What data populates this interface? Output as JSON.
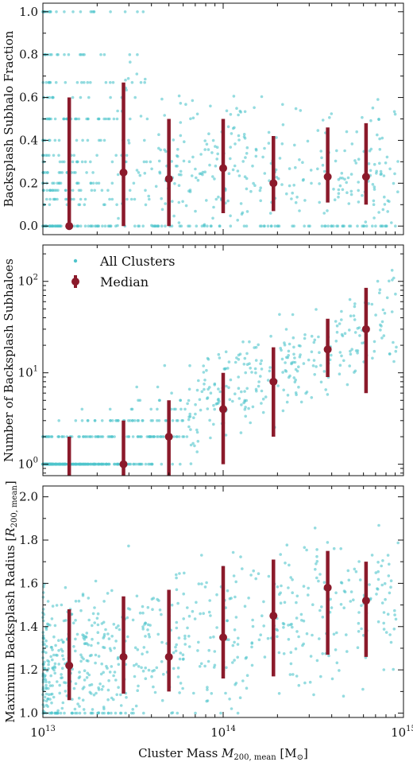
{
  "colors": {
    "scatter": "#4fc4cc",
    "median": "#8b1a2b",
    "axis": "#111111"
  },
  "xaxis": {
    "label_prefix": "Cluster Mass ",
    "label_symbol": "M",
    "label_sub": "200, mean",
    "label_unit": " [M",
    "label_unit_sub": "⊙",
    "label_unit_end": "]",
    "scale": "log",
    "xlim": [
      10000000000000.0,
      1000000000000000.0
    ],
    "tick_labels": [
      {
        "base": "10",
        "exp": "13",
        "value": 10000000000000.0
      },
      {
        "base": "10",
        "exp": "14",
        "value": 100000000000000.0
      },
      {
        "base": "10",
        "exp": "15",
        "value": 1000000000000000.0
      }
    ]
  },
  "legend": {
    "placement": "upper-left of middle panel",
    "scatter_label": "All Clusters",
    "median_label": "Median"
  },
  "chart_data": [
    {
      "type": "scatter",
      "ylabel": "Backsplash Subhalo Fraction",
      "yscale": "linear",
      "ylim": [
        -0.04,
        1.04
      ],
      "yticks": [
        0.0,
        0.2,
        0.4,
        0.6,
        0.8,
        1.0
      ],
      "ytick_labels": [
        "0.0",
        "0.2",
        "0.4",
        "0.6",
        "0.8",
        "1.0"
      ],
      "median": [
        {
          "x": 14000000000000.0,
          "y": 0.0,
          "lo": 0.0,
          "hi": 0.6
        },
        {
          "x": 28000000000000.0,
          "y": 0.25,
          "lo": 0.0,
          "hi": 0.67
        },
        {
          "x": 50000000000000.0,
          "y": 0.22,
          "lo": 0.0,
          "hi": 0.5
        },
        {
          "x": 100000000000000.0,
          "y": 0.27,
          "lo": 0.06,
          "hi": 0.5
        },
        {
          "x": 190000000000000.0,
          "y": 0.2,
          "lo": 0.07,
          "hi": 0.42
        },
        {
          "x": 380000000000000.0,
          "y": 0.23,
          "lo": 0.11,
          "hi": 0.46
        },
        {
          "x": 620000000000000.0,
          "y": 0.23,
          "lo": 0.1,
          "hi": 0.48
        }
      ],
      "scatter_summary": "Discrete horizontal bands at 0, 0.25, 0.33, 0.5, 0.67, 1.0 at low mass; broad spread 0–0.9 at high mass"
    },
    {
      "type": "scatter",
      "ylabel": "Number of Backsplash Subhaloes",
      "yscale": "log",
      "ylim": [
        0.75,
        250
      ],
      "ytick_labels": [
        {
          "base": "10",
          "exp": "0",
          "value": 1
        },
        {
          "base": "10",
          "exp": "1",
          "value": 10
        },
        {
          "base": "10",
          "exp": "2",
          "value": 100
        }
      ],
      "median": [
        {
          "x": 14000000000000.0,
          "y": 0.5,
          "lo": 0.5,
          "hi": 2
        },
        {
          "x": 28000000000000.0,
          "y": 1,
          "lo": 0.5,
          "hi": 3
        },
        {
          "x": 50000000000000.0,
          "y": 2,
          "lo": 0.5,
          "hi": 5
        },
        {
          "x": 100000000000000.0,
          "y": 4,
          "lo": 1,
          "hi": 10
        },
        {
          "x": 190000000000000.0,
          "y": 8,
          "lo": 2,
          "hi": 19
        },
        {
          "x": 380000000000000.0,
          "y": 18,
          "lo": 9,
          "hi": 39
        },
        {
          "x": 620000000000000.0,
          "y": 30,
          "lo": 6,
          "hi": 85
        }
      ]
    },
    {
      "type": "scatter",
      "ylabel_prefix": "Maximum Backsplash Radius [",
      "ylabel_symbol": "R",
      "ylabel_sub": "200, mean",
      "ylabel_end": "]",
      "yscale": "linear",
      "ylim": [
        0.98,
        2.05
      ],
      "yticks": [
        1.0,
        1.2,
        1.4,
        1.6,
        1.8,
        2.0
      ],
      "ytick_labels": [
        "1.0",
        "1.2",
        "1.4",
        "1.6",
        "1.8",
        "2.0"
      ],
      "median": [
        {
          "x": 14000000000000.0,
          "y": 1.22,
          "lo": 1.06,
          "hi": 1.48
        },
        {
          "x": 28000000000000.0,
          "y": 1.26,
          "lo": 1.09,
          "hi": 1.54
        },
        {
          "x": 50000000000000.0,
          "y": 1.26,
          "lo": 1.1,
          "hi": 1.57
        },
        {
          "x": 100000000000000.0,
          "y": 1.35,
          "lo": 1.16,
          "hi": 1.68
        },
        {
          "x": 190000000000000.0,
          "y": 1.45,
          "lo": 1.17,
          "hi": 1.71
        },
        {
          "x": 380000000000000.0,
          "y": 1.58,
          "lo": 1.27,
          "hi": 1.75
        },
        {
          "x": 620000000000000.0,
          "y": 1.52,
          "lo": 1.26,
          "hi": 1.7
        }
      ]
    }
  ]
}
